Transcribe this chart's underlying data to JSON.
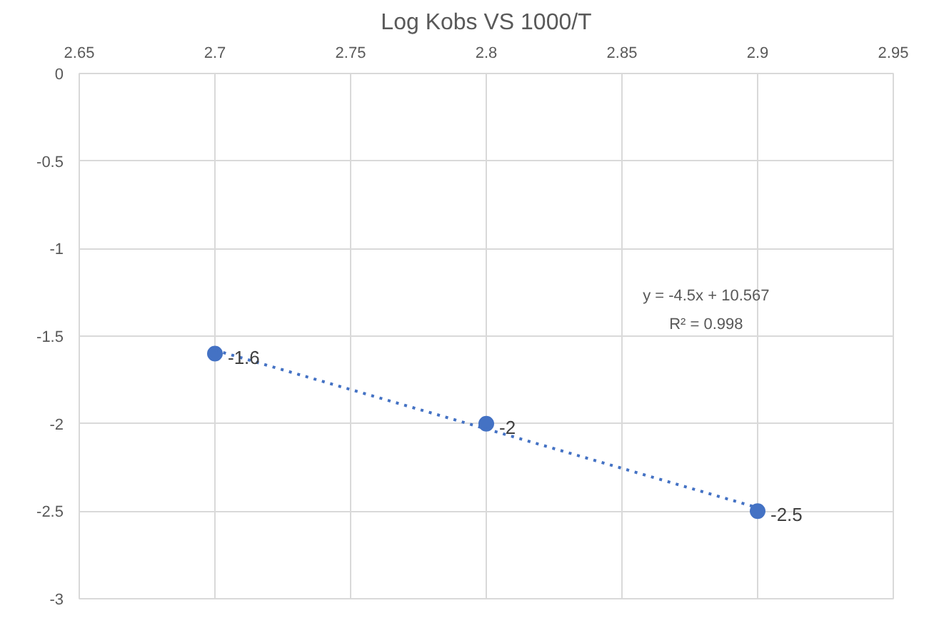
{
  "chart_data": {
    "type": "scatter",
    "title": "Log Kobs VS 1000/T",
    "x": [
      2.7,
      2.8,
      2.9
    ],
    "series": [
      {
        "color": "#4472c4",
        "values": [
          -1.6,
          -2,
          -2.5
        ],
        "value_labels": [
          "-1.6",
          "-2",
          "-2.5"
        ],
        "marker": "circle"
      },
      {
        "type": "line",
        "color": "#4472c4",
        "x": [
          2.7,
          2.9
        ],
        "values": [
          -1.58,
          -2.48
        ],
        "line_style": "dotted",
        "marker": "none"
      }
    ],
    "annotations": [
      "y = -4.5x + 10.567",
      "R² = 0.998"
    ],
    "xlim": [
      2.65,
      2.95
    ],
    "xticks": [
      2.65,
      2.7,
      2.75,
      2.8,
      2.85,
      2.9,
      2.95
    ],
    "ylim": [
      -3,
      0
    ],
    "yticks": [
      0,
      -0.5,
      -1,
      -1.5,
      -2,
      -2.5,
      -3
    ],
    "grid": true
  }
}
